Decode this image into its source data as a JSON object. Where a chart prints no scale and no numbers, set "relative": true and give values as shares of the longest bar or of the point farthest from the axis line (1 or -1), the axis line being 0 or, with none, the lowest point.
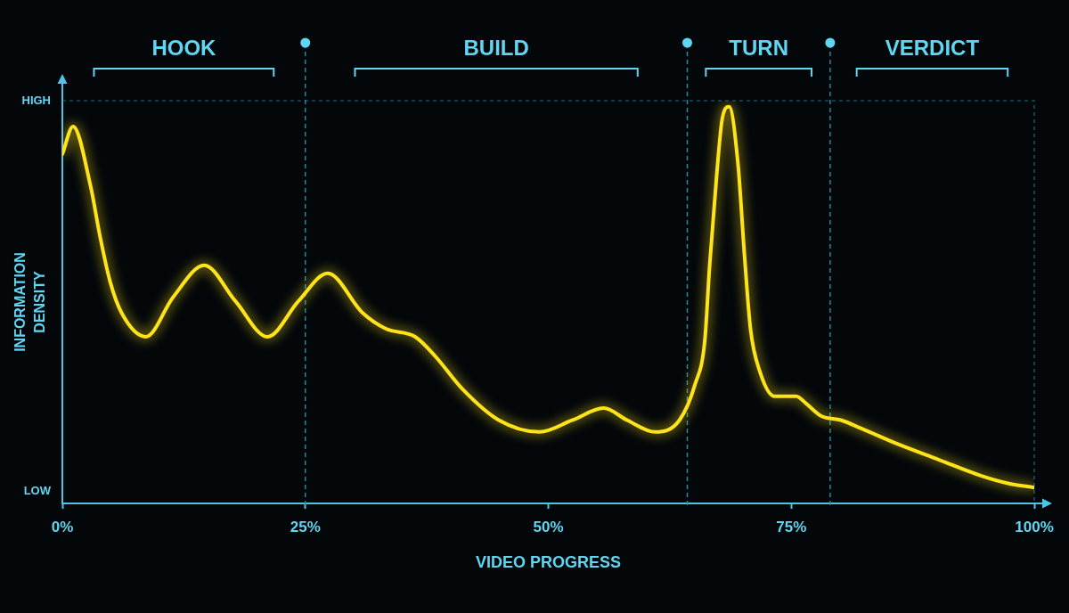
{
  "chart_data": {
    "type": "line",
    "relative": true,
    "xlabel": "VIDEO PROGRESS",
    "ylabel": "INFORMATION DENSITY",
    "xlim": [
      0,
      100
    ],
    "xticks": [
      {
        "value": 0,
        "label": "0%"
      },
      {
        "value": 25,
        "label": "25%"
      },
      {
        "value": 50,
        "label": "50%"
      },
      {
        "value": 75,
        "label": "75%"
      },
      {
        "value": 100,
        "label": "100%"
      }
    ],
    "marker": "none",
    "line_style": "solid",
    "series": [
      {
        "color": "#ffe41a",
        "x": [
          0,
          1.1,
          2.9,
          3.9,
          4.9,
          6.1,
          8.6,
          11.4,
          14.6,
          17.8,
          21.1,
          24.3,
          27.3,
          30.9,
          33.3,
          36.3,
          38.4,
          41.1,
          44.9,
          49.1,
          52.5,
          55.7,
          58.1,
          61.0,
          63.5,
          65.1,
          66.1,
          66.6,
          67.3,
          67.9,
          68.6,
          69.5,
          70.2,
          70.8,
          71.8,
          73.3,
          75.5,
          76.6,
          78.1,
          80.1,
          82.1,
          85.9,
          90.2,
          94.5,
          97.4,
          100
        ],
        "values": [
          0.88,
          0.95,
          0.8,
          0.67,
          0.56,
          0.48,
          0.42,
          0.52,
          0.6,
          0.51,
          0.42,
          0.51,
          0.58,
          0.48,
          0.44,
          0.42,
          0.37,
          0.29,
          0.21,
          0.18,
          0.21,
          0.24,
          0.21,
          0.18,
          0.21,
          0.3,
          0.41,
          0.6,
          0.82,
          0.97,
          1.0,
          0.86,
          0.62,
          0.44,
          0.33,
          0.27,
          0.27,
          0.25,
          0.22,
          0.21,
          0.19,
          0.15,
          0.11,
          0.07,
          0.05,
          0.04
        ]
      }
    ],
    "ref_lines": [
      {
        "axis": "x",
        "value": 25,
        "color": "#2590a3",
        "line_style": "dashed"
      },
      {
        "axis": "x",
        "value": 64.3,
        "color": "#2590a3",
        "line_style": "dashed"
      },
      {
        "axis": "x",
        "value": 79.0,
        "color": "#2590a3",
        "line_style": "dashed"
      }
    ],
    "annotations": [
      "HIGH",
      "LOW",
      "HOOK",
      "BUILD",
      "TURN",
      "VERDICT"
    ]
  }
}
